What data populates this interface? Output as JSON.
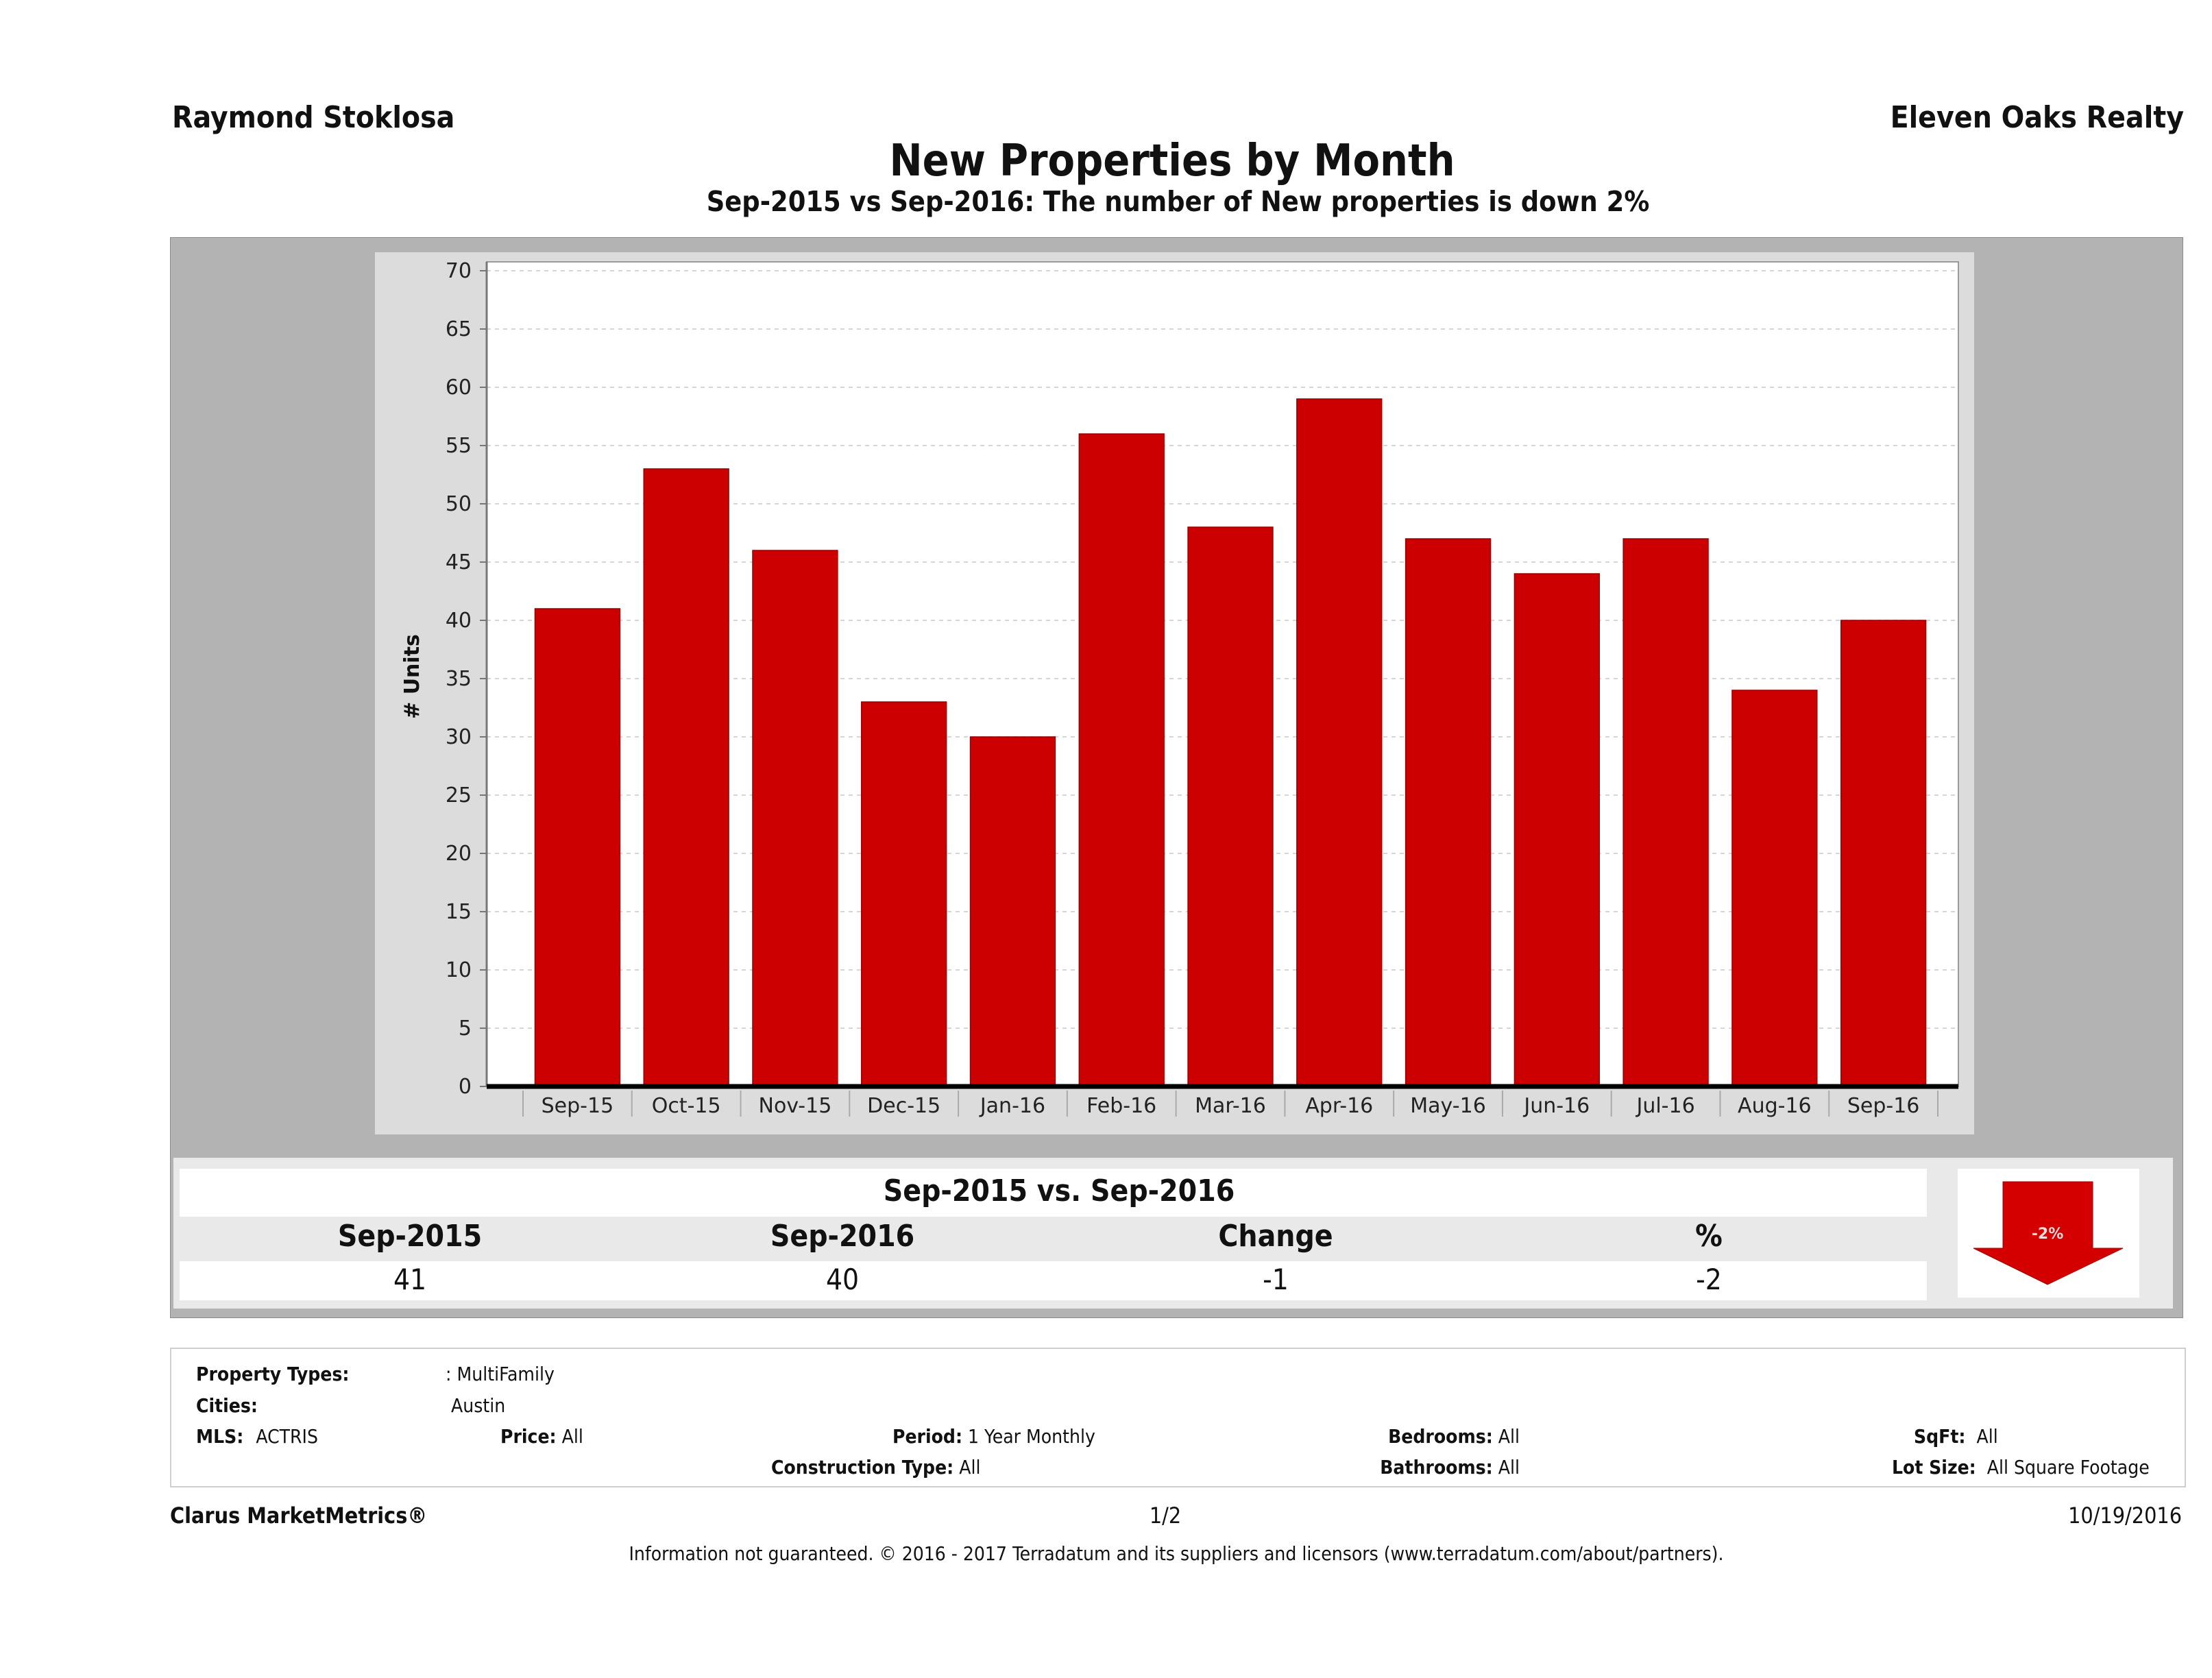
{
  "header": {
    "agent_name": "Raymond Stoklosa",
    "company": "Eleven Oaks Realty",
    "title": "New Properties by Month",
    "subtitle": "Sep-2015 vs Sep-2016: The number of New  properties is down 2%"
  },
  "colors": {
    "bar": "#cc0000",
    "bar_edge": "#990000",
    "arrow": "#d40000",
    "outer_box": "#b3b3b3",
    "chart_panel": "#dcdcdc"
  },
  "chart_data": {
    "type": "bar",
    "title": "New Properties by Month",
    "xlabel": "",
    "ylabel": "# Units",
    "categories": [
      "Sep-15",
      "Oct-15",
      "Nov-15",
      "Dec-15",
      "Jan-16",
      "Feb-16",
      "Mar-16",
      "Apr-16",
      "May-16",
      "Jun-16",
      "Jul-16",
      "Aug-16",
      "Sep-16"
    ],
    "values": [
      41,
      53,
      46,
      33,
      30,
      56,
      48,
      59,
      47,
      44,
      47,
      34,
      40
    ],
    "ylim": [
      0,
      70
    ],
    "yticks": [
      0,
      5,
      10,
      15,
      20,
      25,
      30,
      35,
      40,
      45,
      50,
      55,
      60,
      65,
      70
    ],
    "grid": true,
    "legend": "none"
  },
  "stats": {
    "title": "Sep-2015 vs. Sep-2016",
    "headers": [
      "Sep-2015",
      "Sep-2016",
      "Change",
      "%"
    ],
    "values": [
      "41",
      "40",
      "-1",
      "-2"
    ],
    "badge": "-2%",
    "direction_icon": "down-arrow-icon"
  },
  "criteria": {
    "property_types_label": "Property Types:",
    "property_types_value": ": MultiFamily",
    "cities_label": "Cities:",
    "cities_value": "Austin",
    "mls_label": "MLS:",
    "mls_value": "ACTRIS",
    "price_label": "Price:",
    "price_value": "All",
    "period_label": "Period:",
    "period_value": "1 Year Monthly",
    "construction_label": "Construction Type:",
    "construction_value": "All",
    "bedrooms_label": "Bedrooms:",
    "bedrooms_value": "All",
    "bathrooms_label": "Bathrooms:",
    "bathrooms_value": "All",
    "sqft_label": "SqFt:",
    "sqft_value": "All",
    "lotsize_label": "Lot Size:",
    "lotsize_value": "All Square Footage"
  },
  "footer": {
    "brand": "Clarus MarketMetrics®",
    "page": "1/2",
    "date": "10/19/2016",
    "disclaimer": "Information not guaranteed. © 2016 - 2017 Terradatum and its suppliers and licensors (www.terradatum.com/about/partners)."
  }
}
